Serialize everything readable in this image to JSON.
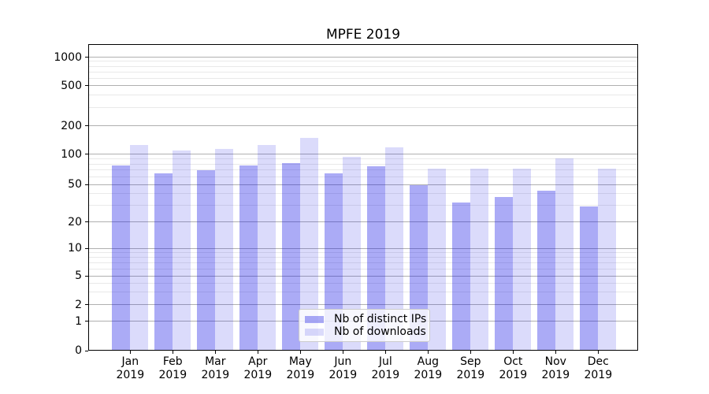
{
  "chart_data": {
    "type": "bar",
    "title": "MPFE 2019",
    "yscale": "symlog",
    "yticks": [
      0,
      1,
      2,
      5,
      10,
      20,
      50,
      100,
      200,
      500,
      1000
    ],
    "minor_yticks": [
      3,
      4,
      6,
      7,
      8,
      9,
      30,
      40,
      60,
      70,
      80,
      90,
      300,
      400,
      600,
      700,
      800,
      900
    ],
    "ylim": [
      0,
      1300
    ],
    "grid": "on",
    "legend_position": "lower-center",
    "x_tick_months": [
      "Jan",
      "Feb",
      "Mar",
      "Apr",
      "May",
      "Jun",
      "Jul",
      "Aug",
      "Sep",
      "Oct",
      "Nov",
      "Dec"
    ],
    "x_tick_year": "2019",
    "series": [
      {
        "name": "Nb of distinct IPs",
        "values": [
          77,
          65,
          69,
          78,
          81,
          65,
          76,
          49,
          32,
          37,
          43,
          29
        ]
      },
      {
        "name": "Nb of downloads",
        "values": [
          125,
          110,
          114,
          126,
          150,
          95,
          119,
          72,
          72,
          72,
          91,
          72
        ]
      }
    ]
  },
  "colors": {
    "bar_base": "#0d0de4",
    "ips_bar_alpha": 0.35,
    "downloads_bar_alpha": 0.15,
    "grid_major": "#b0b0b0",
    "grid_minor": "#e9e9e9",
    "axis": "#000000",
    "legend_border": "#cccccc"
  }
}
